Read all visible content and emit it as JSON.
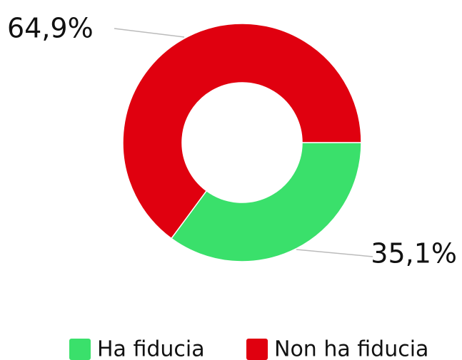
{
  "chart_data": {
    "type": "pie",
    "donut": true,
    "categories": [
      "Ha fiducia",
      "Non ha fiducia"
    ],
    "values": [
      35.1,
      64.9
    ],
    "value_labels": [
      "35,1%",
      "64,9%"
    ],
    "colors": [
      "#3ae06b",
      "#e0000f"
    ],
    "legend": "bottom"
  }
}
